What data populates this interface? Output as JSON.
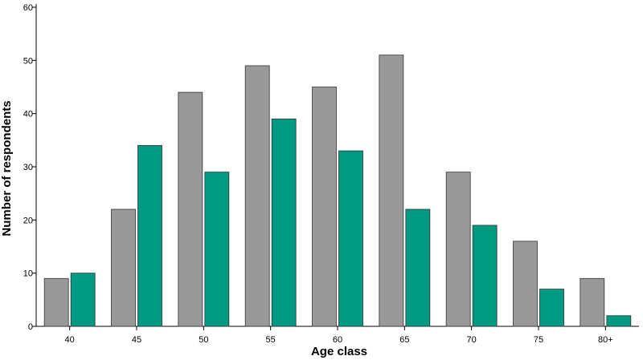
{
  "chart_data": {
    "type": "bar",
    "title": "",
    "xlabel": "Age class",
    "ylabel": "Number of respondents",
    "categories": [
      "40",
      "45",
      "50",
      "55",
      "60",
      "65",
      "70",
      "75",
      "80+"
    ],
    "series": [
      {
        "values": [
          9,
          22,
          44,
          49,
          45,
          51,
          29,
          16,
          9
        ],
        "color": "#999999"
      },
      {
        "values": [
          10,
          34,
          29,
          39,
          33,
          22,
          19,
          7,
          2
        ],
        "color": "#009982"
      }
    ],
    "ylim": [
      0,
      60
    ],
    "yticks": [
      0,
      10,
      20,
      30,
      40,
      50,
      60
    ],
    "grid": false,
    "legend": "none"
  }
}
